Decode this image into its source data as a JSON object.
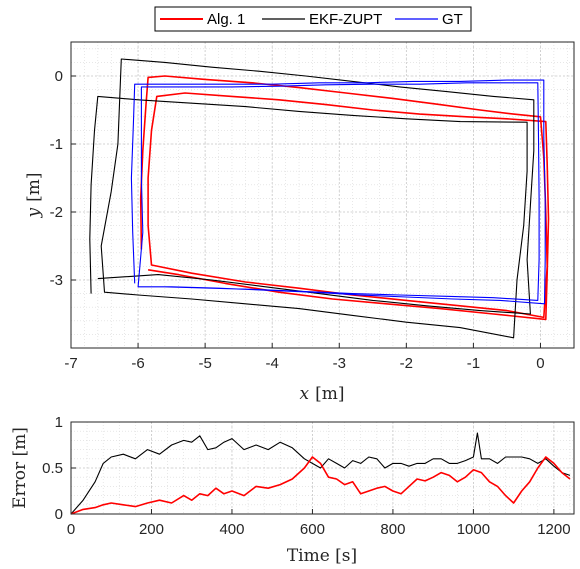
{
  "chart_data": [
    {
      "type": "line",
      "title": "",
      "xlabel_var": "x",
      "xlabel_unit": "[m]",
      "ylabel_var": "y",
      "ylabel_unit": "[m]",
      "xlim": [
        -7,
        0.5
      ],
      "ylim": [
        -4,
        0.5
      ],
      "xticks": [
        -7,
        -6,
        -5,
        -4,
        -3,
        -2,
        -1,
        0
      ],
      "yticks": [
        0,
        -1,
        -2,
        -3
      ],
      "grid": true,
      "minor_grid": true,
      "legend": {
        "placement": "top-outside",
        "orientation": "horizontal"
      },
      "series": [
        {
          "name": "Alg. 1",
          "color": "#ff0000",
          "points": [
            [
              -5.95,
              -2.55
            ],
            [
              -5.96,
              -1.8
            ],
            [
              -5.93,
              -1.1
            ],
            [
              -5.88,
              -0.4
            ],
            [
              -5.85,
              -0.02
            ],
            [
              -5.6,
              0.0
            ],
            [
              -5.0,
              -0.05
            ],
            [
              -4.3,
              -0.1
            ],
            [
              -3.6,
              -0.17
            ],
            [
              -2.9,
              -0.25
            ],
            [
              -2.2,
              -0.33
            ],
            [
              -1.5,
              -0.42
            ],
            [
              -0.9,
              -0.5
            ],
            [
              -0.4,
              -0.56
            ],
            [
              0.0,
              -0.6
            ],
            [
              0.05,
              -1.2
            ],
            [
              0.08,
              -2.0
            ],
            [
              0.1,
              -2.8
            ],
            [
              0.05,
              -3.55
            ],
            [
              -0.5,
              -3.45
            ],
            [
              -1.2,
              -3.38
            ],
            [
              -2.0,
              -3.3
            ],
            [
              -2.8,
              -3.22
            ],
            [
              -3.6,
              -3.12
            ],
            [
              -4.4,
              -3.03
            ],
            [
              -5.2,
              -2.9
            ],
            [
              -5.8,
              -2.78
            ],
            [
              -5.85,
              -2.2
            ],
            [
              -5.85,
              -1.5
            ],
            [
              -5.8,
              -0.8
            ],
            [
              -5.72,
              -0.3
            ],
            [
              -5.3,
              -0.25
            ],
            [
              -4.6,
              -0.3
            ],
            [
              -3.9,
              -0.35
            ],
            [
              -3.2,
              -0.42
            ],
            [
              -2.5,
              -0.5
            ],
            [
              -1.8,
              -0.56
            ],
            [
              -1.1,
              -0.6
            ],
            [
              -0.5,
              -0.63
            ],
            [
              0.08,
              -0.67
            ],
            [
              0.1,
              -1.3
            ],
            [
              0.12,
              -2.1
            ],
            [
              0.1,
              -2.9
            ],
            [
              0.08,
              -3.58
            ],
            [
              -0.7,
              -3.5
            ],
            [
              -1.5,
              -3.42
            ],
            [
              -2.3,
              -3.35
            ],
            [
              -3.1,
              -3.28
            ],
            [
              -3.9,
              -3.18
            ],
            [
              -4.7,
              -3.05
            ],
            [
              -5.4,
              -2.92
            ],
            [
              -5.85,
              -2.85
            ]
          ]
        },
        {
          "name": "EKF-ZUPT",
          "color": "#000000",
          "points": [
            [
              -6.7,
              -3.2
            ],
            [
              -6.72,
              -2.4
            ],
            [
              -6.7,
              -1.6
            ],
            [
              -6.65,
              -0.8
            ],
            [
              -6.6,
              -0.3
            ],
            [
              -6.0,
              -0.35
            ],
            [
              -5.2,
              -0.4
            ],
            [
              -4.4,
              -0.45
            ],
            [
              -3.6,
              -0.52
            ],
            [
              -2.8,
              -0.58
            ],
            [
              -2.0,
              -0.63
            ],
            [
              -1.2,
              -0.67
            ],
            [
              -0.2,
              -0.68
            ],
            [
              -0.2,
              -1.4
            ],
            [
              -0.25,
              -2.2
            ],
            [
              -0.35,
              -3.0
            ],
            [
              -0.4,
              -3.85
            ],
            [
              -1.2,
              -3.7
            ],
            [
              -2.0,
              -3.62
            ],
            [
              -2.8,
              -3.52
            ],
            [
              -3.6,
              -3.42
            ],
            [
              -4.4,
              -3.35
            ],
            [
              -5.2,
              -3.28
            ],
            [
              -6.0,
              -3.22
            ],
            [
              -6.5,
              -3.18
            ],
            [
              -6.55,
              -2.5
            ],
            [
              -6.4,
              -1.7
            ],
            [
              -6.3,
              -1.0
            ],
            [
              -6.25,
              0.25
            ],
            [
              -5.6,
              0.2
            ],
            [
              -4.9,
              0.13
            ],
            [
              -4.2,
              0.07
            ],
            [
              -3.5,
              0.0
            ],
            [
              -2.8,
              -0.08
            ],
            [
              -2.1,
              -0.16
            ],
            [
              -1.4,
              -0.23
            ],
            [
              -0.7,
              -0.3
            ],
            [
              -0.1,
              -0.35
            ],
            [
              -0.1,
              -1.1
            ],
            [
              -0.15,
              -1.9
            ],
            [
              -0.2,
              -2.7
            ],
            [
              -0.15,
              -3.5
            ],
            [
              -0.9,
              -3.45
            ],
            [
              -1.7,
              -3.38
            ],
            [
              -2.5,
              -3.3
            ],
            [
              -3.3,
              -3.2
            ],
            [
              -4.1,
              -3.1
            ],
            [
              -4.9,
              -3.0
            ],
            [
              -5.7,
              -2.92
            ],
            [
              -6.6,
              -2.98
            ]
          ]
        },
        {
          "name": "GT",
          "color": "#0000ff",
          "points": [
            [
              -6.05,
              -3.05
            ],
            [
              -6.08,
              -2.3
            ],
            [
              -6.1,
              -1.5
            ],
            [
              -6.07,
              -0.7
            ],
            [
              -6.05,
              -0.12
            ],
            [
              -5.4,
              -0.12
            ],
            [
              -4.7,
              -0.12
            ],
            [
              -4.0,
              -0.12
            ],
            [
              -3.3,
              -0.1
            ],
            [
              -2.6,
              -0.1
            ],
            [
              -1.9,
              -0.08
            ],
            [
              -1.2,
              -0.08
            ],
            [
              -0.5,
              -0.06
            ],
            [
              0.05,
              -0.06
            ],
            [
              0.05,
              -0.9
            ],
            [
              0.07,
              -1.8
            ],
            [
              0.07,
              -2.7
            ],
            [
              0.06,
              -3.35
            ],
            [
              -0.6,
              -3.3
            ],
            [
              -1.3,
              -3.28
            ],
            [
              -2.0,
              -3.25
            ],
            [
              -2.7,
              -3.22
            ],
            [
              -3.4,
              -3.18
            ],
            [
              -4.1,
              -3.15
            ],
            [
              -4.8,
              -3.12
            ],
            [
              -5.5,
              -3.1
            ],
            [
              -6.0,
              -3.1
            ],
            [
              -5.93,
              -2.3
            ],
            [
              -5.95,
              -1.5
            ],
            [
              -5.95,
              -0.7
            ],
            [
              -5.95,
              -0.16
            ],
            [
              -5.3,
              -0.16
            ],
            [
              -4.6,
              -0.16
            ],
            [
              -3.9,
              -0.15
            ],
            [
              -3.2,
              -0.13
            ],
            [
              -2.5,
              -0.12
            ],
            [
              -1.8,
              -0.12
            ],
            [
              -1.1,
              -0.1
            ],
            [
              -0.4,
              -0.1
            ],
            [
              -0.04,
              -0.1
            ],
            [
              -0.03,
              -0.9
            ],
            [
              -0.02,
              -1.8
            ],
            [
              -0.02,
              -2.7
            ],
            [
              -0.04,
              -3.3
            ],
            [
              -0.7,
              -3.26
            ],
            [
              -1.4,
              -3.24
            ],
            [
              -2.1,
              -3.22
            ],
            [
              -2.8,
              -3.2
            ],
            [
              -3.5,
              -3.17
            ],
            [
              -4.2,
              -3.14
            ],
            [
              -4.9,
              -3.12
            ],
            [
              -5.6,
              -3.1
            ]
          ]
        }
      ]
    },
    {
      "type": "line",
      "title": "",
      "xlabel": "Time [s]",
      "ylabel": "Error [m]",
      "xlim": [
        0,
        1250
      ],
      "ylim": [
        0,
        1
      ],
      "xticks": [
        0,
        200,
        400,
        600,
        800,
        1000,
        1200
      ],
      "yticks": [
        0,
        0.5,
        1
      ],
      "grid": true,
      "minor_grid": true,
      "series": [
        {
          "legend": "EKF-ZUPT",
          "color": "#000000",
          "x": [
            0,
            30,
            60,
            80,
            100,
            130,
            160,
            190,
            220,
            250,
            280,
            300,
            320,
            340,
            360,
            380,
            400,
            430,
            460,
            490,
            520,
            550,
            580,
            600,
            620,
            640,
            660,
            680,
            700,
            720,
            740,
            760,
            780,
            800,
            820,
            840,
            860,
            880,
            900,
            920,
            940,
            960,
            980,
            1000,
            1010,
            1020,
            1040,
            1060,
            1080,
            1100,
            1120,
            1140,
            1160,
            1180,
            1200,
            1220,
            1240
          ],
          "y": [
            0.0,
            0.15,
            0.35,
            0.55,
            0.62,
            0.65,
            0.6,
            0.7,
            0.65,
            0.75,
            0.8,
            0.78,
            0.85,
            0.7,
            0.72,
            0.78,
            0.82,
            0.7,
            0.75,
            0.7,
            0.78,
            0.72,
            0.6,
            0.55,
            0.5,
            0.6,
            0.55,
            0.5,
            0.58,
            0.55,
            0.62,
            0.6,
            0.5,
            0.55,
            0.55,
            0.52,
            0.55,
            0.55,
            0.6,
            0.6,
            0.55,
            0.55,
            0.58,
            0.62,
            0.88,
            0.6,
            0.6,
            0.55,
            0.62,
            0.62,
            0.62,
            0.6,
            0.55,
            0.6,
            0.52,
            0.45,
            0.42
          ]
        },
        {
          "legend": "Alg. 1",
          "color": "#ff0000",
          "x": [
            0,
            30,
            60,
            80,
            100,
            130,
            160,
            190,
            220,
            250,
            280,
            300,
            320,
            340,
            360,
            380,
            400,
            430,
            460,
            490,
            520,
            550,
            580,
            600,
            620,
            640,
            660,
            680,
            700,
            720,
            740,
            760,
            780,
            800,
            820,
            840,
            860,
            880,
            900,
            920,
            940,
            960,
            980,
            1000,
            1020,
            1040,
            1060,
            1080,
            1100,
            1120,
            1140,
            1160,
            1180,
            1200,
            1220,
            1240
          ],
          "y": [
            0.0,
            0.05,
            0.07,
            0.1,
            0.12,
            0.1,
            0.08,
            0.12,
            0.15,
            0.12,
            0.2,
            0.15,
            0.22,
            0.2,
            0.28,
            0.22,
            0.25,
            0.2,
            0.3,
            0.28,
            0.32,
            0.38,
            0.5,
            0.62,
            0.55,
            0.4,
            0.38,
            0.32,
            0.35,
            0.22,
            0.25,
            0.28,
            0.3,
            0.25,
            0.22,
            0.3,
            0.38,
            0.36,
            0.4,
            0.45,
            0.42,
            0.35,
            0.4,
            0.48,
            0.45,
            0.35,
            0.3,
            0.2,
            0.12,
            0.25,
            0.35,
            0.5,
            0.62,
            0.55,
            0.45,
            0.38
          ]
        }
      ]
    }
  ]
}
